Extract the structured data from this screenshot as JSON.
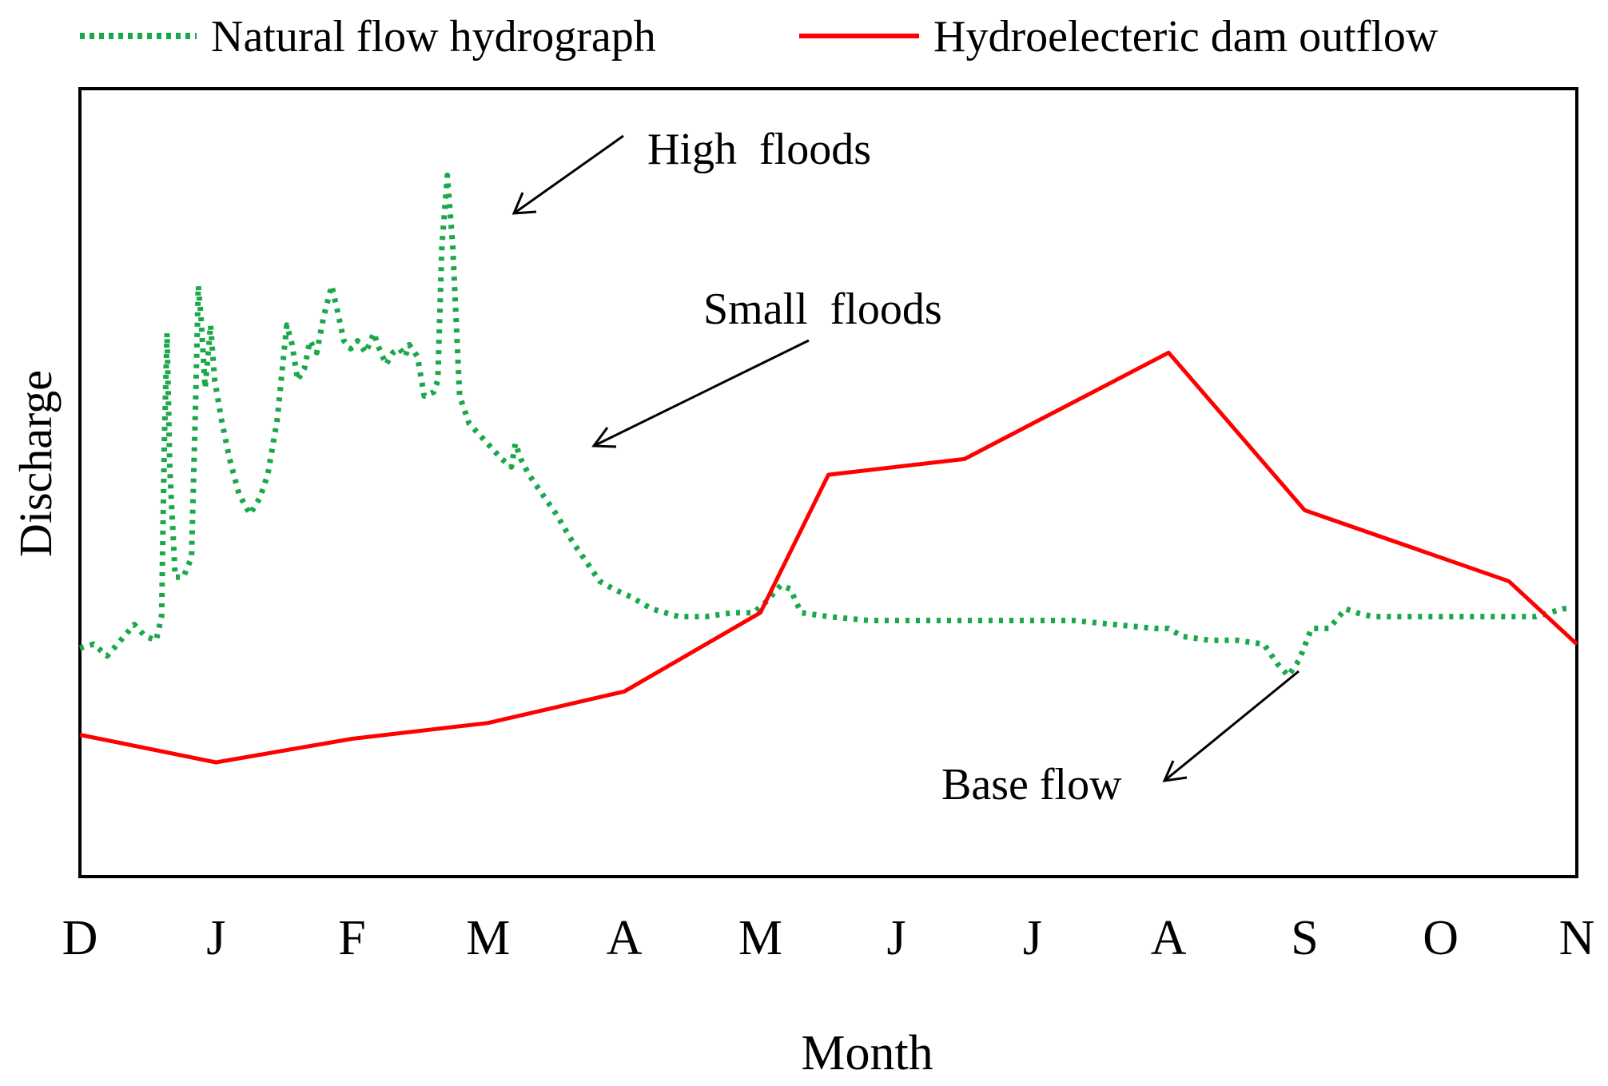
{
  "chart_data": {
    "type": "line",
    "title": "",
    "xlabel": "Month",
    "ylabel": "Discharge",
    "x_tick_labels": [
      "D",
      "J",
      "F",
      "M",
      "A",
      "M",
      "J",
      "J",
      "A",
      "S",
      "O",
      "N"
    ],
    "x_range": [
      0,
      11
    ],
    "ylim": [
      0,
      100
    ],
    "grid": false,
    "legend_position": "top",
    "series": [
      {
        "name": "Natural flow hydrograph",
        "style": "dotted",
        "color": "#1aa84a",
        "points": [
          [
            0.0,
            29.0
          ],
          [
            0.1,
            29.5
          ],
          [
            0.2,
            28.0
          ],
          [
            0.3,
            30.0
          ],
          [
            0.4,
            32.0
          ],
          [
            0.48,
            30.5
          ],
          [
            0.56,
            30.0
          ],
          [
            0.6,
            33.0
          ],
          [
            0.62,
            55.0
          ],
          [
            0.64,
            69.0
          ],
          [
            0.66,
            52.0
          ],
          [
            0.7,
            38.0
          ],
          [
            0.76,
            38.0
          ],
          [
            0.82,
            40.5
          ],
          [
            0.85,
            60.0
          ],
          [
            0.87,
            75.0
          ],
          [
            0.89,
            71.0
          ],
          [
            0.92,
            62.0
          ],
          [
            0.94,
            66.0
          ],
          [
            0.96,
            70.0
          ],
          [
            0.99,
            63.0
          ],
          [
            1.04,
            58.0
          ],
          [
            1.1,
            53.0
          ],
          [
            1.17,
            48.5
          ],
          [
            1.25,
            46.0
          ],
          [
            1.32,
            48.0
          ],
          [
            1.38,
            51.0
          ],
          [
            1.45,
            58.0
          ],
          [
            1.52,
            70.0
          ],
          [
            1.56,
            67.5
          ],
          [
            1.6,
            63.0
          ],
          [
            1.65,
            64.5
          ],
          [
            1.69,
            68.0
          ],
          [
            1.74,
            66.5
          ],
          [
            1.79,
            71.0
          ],
          [
            1.85,
            75.0
          ],
          [
            1.89,
            72.0
          ],
          [
            1.94,
            68.0
          ],
          [
            1.99,
            67.0
          ],
          [
            2.04,
            68.0
          ],
          [
            2.1,
            66.5
          ],
          [
            2.16,
            69.0
          ],
          [
            2.2,
            67.0
          ],
          [
            2.25,
            65.0
          ],
          [
            2.3,
            66.5
          ],
          [
            2.35,
            67.0
          ],
          [
            2.39,
            66.0
          ],
          [
            2.42,
            67.5
          ],
          [
            2.48,
            66.0
          ],
          [
            2.53,
            61.0
          ],
          [
            2.6,
            61.5
          ],
          [
            2.63,
            63.0
          ],
          [
            2.66,
            80.0
          ],
          [
            2.7,
            89.0
          ],
          [
            2.74,
            80.0
          ],
          [
            2.79,
            61.0
          ],
          [
            2.86,
            57.5
          ],
          [
            2.94,
            56.0
          ],
          [
            3.02,
            54.5
          ],
          [
            3.1,
            53.0
          ],
          [
            3.17,
            52.0
          ],
          [
            3.2,
            55.0
          ],
          [
            3.24,
            53.0
          ],
          [
            3.3,
            51.0
          ],
          [
            3.4,
            48.5
          ],
          [
            3.5,
            46.0
          ],
          [
            3.62,
            42.5
          ],
          [
            3.72,
            40.0
          ],
          [
            3.82,
            37.5
          ],
          [
            3.92,
            36.5
          ],
          [
            4.05,
            35.5
          ],
          [
            4.2,
            34.0
          ],
          [
            4.4,
            33.0
          ],
          [
            4.6,
            33.0
          ],
          [
            4.8,
            33.5
          ],
          [
            4.95,
            33.5
          ],
          [
            5.05,
            35.0
          ],
          [
            5.15,
            37.0
          ],
          [
            5.22,
            36.5
          ],
          [
            5.3,
            33.5
          ],
          [
            5.5,
            33.0
          ],
          [
            5.8,
            32.5
          ],
          [
            6.1,
            32.5
          ],
          [
            6.5,
            32.5
          ],
          [
            7.0,
            32.5
          ],
          [
            7.3,
            32.5
          ],
          [
            7.6,
            32.0
          ],
          [
            7.9,
            31.5
          ],
          [
            8.0,
            31.5
          ],
          [
            8.1,
            30.5
          ],
          [
            8.3,
            30.0
          ],
          [
            8.5,
            30.0
          ],
          [
            8.7,
            29.5
          ],
          [
            8.8,
            27.0
          ],
          [
            8.88,
            25.5
          ],
          [
            8.96,
            27.5
          ],
          [
            9.05,
            31.5
          ],
          [
            9.18,
            31.5
          ],
          [
            9.3,
            34.0
          ],
          [
            9.38,
            33.5
          ],
          [
            9.5,
            33.0
          ],
          [
            9.8,
            33.0
          ],
          [
            10.1,
            33.0
          ],
          [
            10.4,
            33.0
          ],
          [
            10.7,
            33.0
          ],
          [
            10.8,
            33.5
          ],
          [
            10.9,
            34.0
          ],
          [
            10.97,
            34.0
          ]
        ]
      },
      {
        "name": "Hydroelecteric dam outflow",
        "style": "solid",
        "color": "#ff0000",
        "points": [
          [
            0.0,
            18.0
          ],
          [
            1.0,
            14.5
          ],
          [
            2.0,
            17.5
          ],
          [
            3.0,
            19.5
          ],
          [
            4.0,
            23.5
          ],
          [
            5.0,
            33.5
          ],
          [
            5.5,
            51.0
          ],
          [
            6.5,
            53.0
          ],
          [
            8.0,
            66.5
          ],
          [
            9.0,
            46.5
          ],
          [
            10.5,
            37.5
          ],
          [
            11.0,
            29.5
          ]
        ]
      }
    ],
    "annotations": [
      {
        "text": "High  floods",
        "points_to_x": 3.15,
        "points_to_y": 88
      },
      {
        "text": "Small  floods",
        "points_to_x": 3.8,
        "points_to_y": 62
      },
      {
        "text": "Base flow",
        "points_to_x": 8.05,
        "points_to_y": 14
      }
    ]
  }
}
